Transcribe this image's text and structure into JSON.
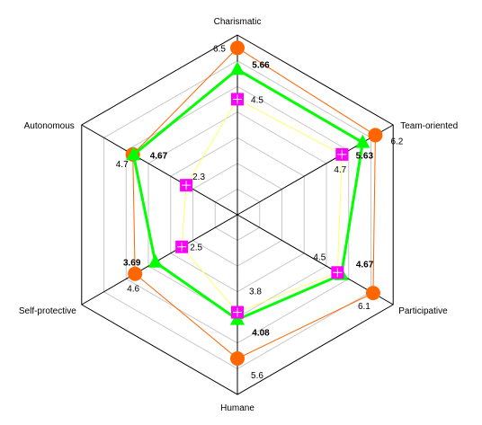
{
  "chart_data": {
    "type": "radar",
    "axes": [
      "Charismatic",
      "Team-oriented",
      "Participative",
      "Humane",
      "Self-protective",
      "Autonomous"
    ],
    "rlim": [
      0,
      7
    ],
    "grid": true,
    "grid_levels": [
      1,
      2,
      3,
      4,
      5,
      6,
      7
    ],
    "legend": "none",
    "series": [
      {
        "values": [
          6.5,
          6.2,
          6.1,
          5.6,
          4.6,
          4.7
        ],
        "labels": [
          "6.5",
          "6.2",
          "6.1",
          "5.6",
          "4.6",
          "4.7"
        ],
        "color": "#ff6600",
        "marker": "circle",
        "bold_labels": false
      },
      {
        "values": [
          5.66,
          5.63,
          4.67,
          4.08,
          3.69,
          4.67
        ],
        "labels": [
          "5.66",
          "5.63",
          "4.67",
          "4.08",
          "3.69",
          "4.67"
        ],
        "color": "#00ff00",
        "marker": "triangle",
        "bold_labels": true
      },
      {
        "values": [
          4.5,
          4.7,
          4.5,
          3.8,
          2.5,
          2.3
        ],
        "labels": [
          "4.5",
          "4.7",
          "4.5",
          "3.8",
          "2.5",
          "2.3"
        ],
        "color": "#ff00ff",
        "line_color": "#ffff66",
        "marker": "square-cross",
        "bold_labels": false
      }
    ]
  }
}
